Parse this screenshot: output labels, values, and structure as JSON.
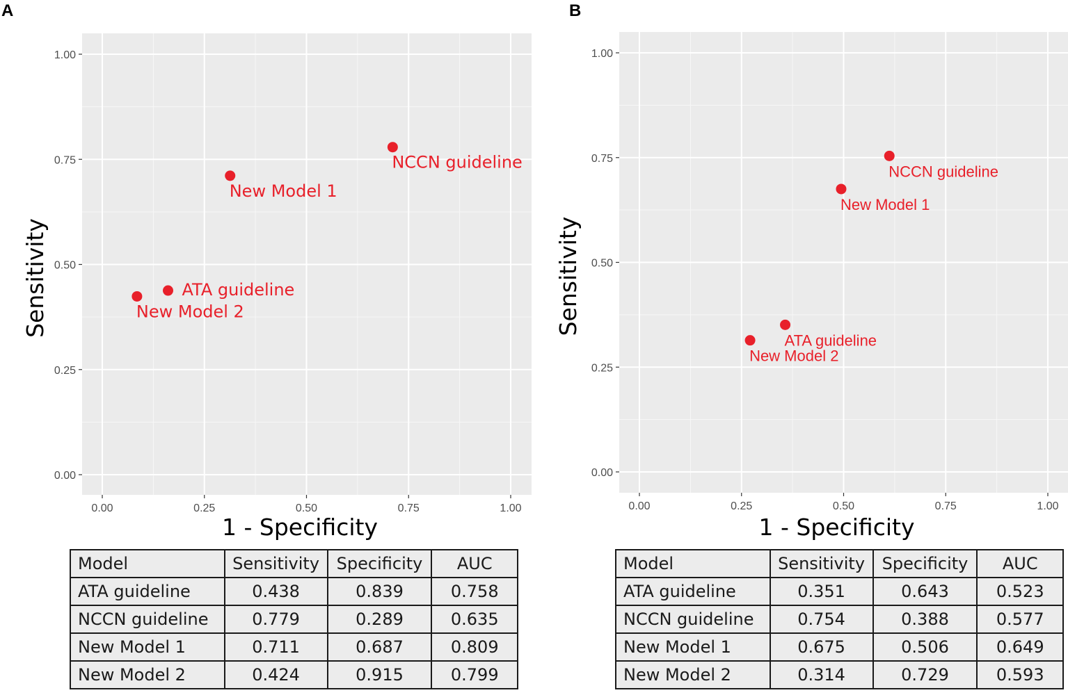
{
  "chart_data": [
    {
      "panel": "A",
      "type": "scatter",
      "xlabel": "1 - Specificity",
      "ylabel": "Sensitivity",
      "xlim": [
        0,
        1
      ],
      "ylim": [
        0,
        1
      ],
      "xticks": [
        "0.00",
        "0.25",
        "0.50",
        "0.75",
        "1.00"
      ],
      "yticks": [
        "0.00",
        "0.25",
        "0.50",
        "0.75",
        "1.00"
      ],
      "grid": true,
      "point_color": "#e8202a",
      "points": [
        {
          "label": "ATA guideline",
          "x": 0.161,
          "y": 0.438,
          "label_pos": "right"
        },
        {
          "label": "NCCN guideline",
          "x": 0.711,
          "y": 0.779,
          "label_pos": "below"
        },
        {
          "label": "New Model 1",
          "x": 0.313,
          "y": 0.711,
          "label_pos": "below"
        },
        {
          "label": "New Model 2",
          "x": 0.085,
          "y": 0.424,
          "label_pos": "below"
        }
      ],
      "table": {
        "headers": [
          "Model",
          "Sensitivity",
          "Specificity",
          "AUC"
        ],
        "rows": [
          [
            "ATA guideline",
            "0.438",
            "0.839",
            "0.758"
          ],
          [
            "NCCN guideline",
            "0.779",
            "0.289",
            "0.635"
          ],
          [
            "New Model 1",
            "0.711",
            "0.687",
            "0.809"
          ],
          [
            "New Model 2",
            "0.424",
            "0.915",
            "0.799"
          ]
        ]
      }
    },
    {
      "panel": "B",
      "type": "scatter",
      "xlabel": "1 - Specificity",
      "ylabel": "Sensitivity",
      "xlim": [
        0,
        1
      ],
      "ylim": [
        0,
        1
      ],
      "xticks": [
        "0.00",
        "0.25",
        "0.50",
        "0.75",
        "1.00"
      ],
      "yticks": [
        "0.00",
        "0.25",
        "0.50",
        "0.75",
        "1.00"
      ],
      "grid": true,
      "point_color": "#e8202a",
      "points": [
        {
          "label": "ATA guideline",
          "x": 0.357,
          "y": 0.351,
          "label_pos": "below"
        },
        {
          "label": "NCCN guideline",
          "x": 0.612,
          "y": 0.754,
          "label_pos": "below"
        },
        {
          "label": "New Model 1",
          "x": 0.494,
          "y": 0.675,
          "label_pos": "below"
        },
        {
          "label": "New Model 2",
          "x": 0.271,
          "y": 0.314,
          "label_pos": "below"
        }
      ],
      "table": {
        "headers": [
          "Model",
          "Sensitivity",
          "Specificity",
          "AUC"
        ],
        "rows": [
          [
            "ATA guideline",
            "0.351",
            "0.643",
            "0.523"
          ],
          [
            "NCCN guideline",
            "0.754",
            "0.388",
            "0.577"
          ],
          [
            "New Model 1",
            "0.675",
            "0.506",
            "0.649"
          ],
          [
            "New Model 2",
            "0.314",
            "0.729",
            "0.593"
          ]
        ]
      }
    }
  ]
}
